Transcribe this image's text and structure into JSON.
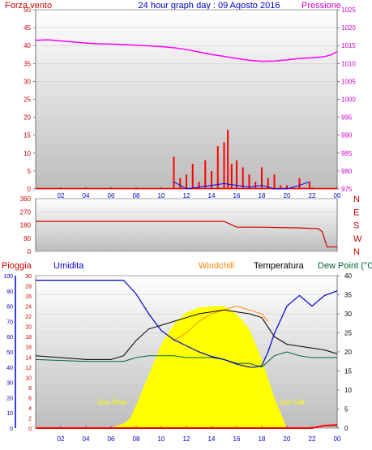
{
  "header": {
    "left_label": "Forza vento",
    "title": "24 hour graph day : 09 Agosto 2016",
    "right_label": "Pressione"
  },
  "mid_header": {
    "left_label": "Pioggia",
    "umidita_label": "Umidita",
    "windchill_label": "Windchill",
    "temperatura_label": "Temperatura",
    "dewpoint_label": "Dew Point (°C"
  },
  "annotations": {
    "sunrise": "Sun Rise",
    "sunset": "Sun Set"
  },
  "colors": {
    "background": "#ffffff",
    "plot_bg_top": "#ffffff",
    "plot_bg_bottom": "#c0c0c0",
    "wind": "#ff0000",
    "gust": "#0000ff",
    "pressure": "#ff00ff",
    "direction": "#cc0000",
    "humidity": "#0000cc",
    "windchill": "#ff8800",
    "temperature": "#000000",
    "dewpoint": "#006633",
    "solar": "#ffff00",
    "rain": "#ff0000"
  },
  "chart_data": [
    {
      "type": "line",
      "x_unit": "hour of day",
      "xlim": [
        0,
        24
      ],
      "x_tick_labels": [
        "02",
        "04",
        "06",
        "08",
        "10",
        "12",
        "14",
        "16",
        "18",
        "20",
        "22",
        "00"
      ],
      "ylim_left": [
        0,
        50
      ],
      "y_ticks_left": [
        0,
        5,
        10,
        15,
        20,
        25,
        30,
        35,
        40,
        45,
        50
      ],
      "ylim_right": [
        975,
        1025
      ],
      "y_ticks_right": [
        975,
        980,
        985,
        990,
        995,
        1000,
        1005,
        1010,
        1015,
        1020,
        1025
      ],
      "series": [
        {
          "name": "Pressione",
          "axis": "right",
          "x": [
            0,
            1,
            2,
            3,
            4,
            5,
            6,
            7,
            8,
            9,
            10,
            11,
            12,
            13,
            14,
            15,
            16,
            17,
            18,
            19,
            20,
            21,
            22,
            23,
            23.5,
            24
          ],
          "values": [
            1016.5,
            1016.6,
            1016.3,
            1016,
            1015.7,
            1015.5,
            1015.4,
            1015.3,
            1015.1,
            1014.9,
            1014.7,
            1014.4,
            1013.9,
            1013.2,
            1012.5,
            1012.0,
            1011.4,
            1010.9,
            1010.6,
            1010.7,
            1011.0,
            1011.4,
            1011.6,
            1011.9,
            1012.4,
            1013.3
          ]
        },
        {
          "name": "Forza vento",
          "axis": "left",
          "render": "bars",
          "x": [
            11,
            11.5,
            12,
            12.5,
            13,
            13.5,
            14,
            14.5,
            15,
            15.3,
            15.6,
            16,
            16.5,
            17,
            17.5,
            18,
            18.5,
            19,
            19.5,
            20,
            21,
            21.8
          ],
          "values": [
            9,
            3,
            4,
            7,
            2,
            8,
            5,
            12,
            13,
            16.5,
            7,
            8,
            6,
            4,
            2,
            6,
            3,
            4,
            1,
            1,
            3,
            2
          ]
        },
        {
          "name": "Raffica",
          "axis": "left",
          "x": [
            11,
            12,
            13,
            14,
            15,
            16,
            17,
            18,
            19,
            20,
            21,
            21.8
          ],
          "values": [
            2,
            0,
            0.5,
            1,
            1.5,
            1,
            0.5,
            1,
            0,
            0,
            1,
            2
          ]
        }
      ]
    },
    {
      "type": "line",
      "ylim": [
        0,
        360
      ],
      "y_ticks": [
        0,
        90,
        180,
        270,
        360
      ],
      "y_tick_labels_right": [
        "N",
        "W",
        "S",
        "E",
        "N"
      ],
      "series": [
        {
          "name": "Direzione vento",
          "x": [
            0,
            15,
            15.5,
            16,
            18,
            21,
            22.5,
            22.8,
            23.2,
            24
          ],
          "values": [
            205,
            205,
            185,
            165,
            165,
            160,
            155,
            135,
            30,
            30
          ]
        }
      ]
    },
    {
      "type": "line",
      "xlim": [
        0,
        24
      ],
      "x_tick_labels": [
        "02",
        "04",
        "06",
        "08",
        "10",
        "12",
        "14",
        "16",
        "18",
        "20",
        "22",
        "00"
      ],
      "ylim_humidity": [
        0,
        100
      ],
      "y_ticks_humidity": [
        0,
        10,
        20,
        30,
        40,
        50,
        60,
        70,
        80,
        90,
        100
      ],
      "ylim_rain": [
        0,
        30
      ],
      "y_ticks_rain": [
        0,
        2,
        4,
        6,
        8,
        10,
        12,
        14,
        16,
        18,
        20,
        22,
        24,
        26,
        28,
        30
      ],
      "ylim_temp": [
        0,
        40
      ],
      "y_ticks_temp": [
        0,
        5,
        10,
        15,
        20,
        25,
        30,
        35,
        40
      ],
      "series": [
        {
          "name": "Umidita",
          "axis": "humidity",
          "x": [
            0,
            6,
            7,
            8,
            9,
            10,
            11,
            12,
            13,
            14,
            15,
            16,
            17,
            17.5,
            18,
            18.5,
            19,
            20,
            21,
            22,
            23,
            24
          ],
          "values": [
            97,
            97,
            97,
            88,
            75,
            64,
            58,
            54,
            50,
            47,
            45,
            42,
            40,
            40,
            41,
            50,
            62,
            80,
            87,
            80,
            87,
            90
          ]
        },
        {
          "name": "Windchill",
          "axis": "temp",
          "x": [
            11,
            12,
            13,
            14,
            15,
            16,
            17,
            18,
            18.5
          ],
          "values": [
            23,
            25,
            28,
            30,
            31,
            32,
            31,
            30,
            28
          ]
        },
        {
          "name": "Temperatura",
          "axis": "temp",
          "x": [
            0,
            4,
            6,
            7,
            8,
            9,
            10,
            11,
            12,
            13,
            14,
            15,
            16,
            17,
            18,
            19,
            20,
            21,
            22,
            23,
            24
          ],
          "values": [
            19,
            18,
            18,
            19,
            23,
            26,
            27,
            28,
            29,
            30,
            30.5,
            31,
            30.5,
            30,
            29,
            24,
            22,
            21.5,
            21,
            20.5,
            19.5
          ]
        },
        {
          "name": "Dew Point",
          "axis": "temp",
          "x": [
            0,
            4,
            6,
            7,
            8,
            9,
            10,
            11,
            12,
            13,
            14,
            15,
            16,
            17,
            18,
            19,
            20,
            21,
            22,
            23,
            24
          ],
          "values": [
            18,
            17.5,
            17.5,
            17.5,
            18.5,
            19,
            19,
            19,
            18.5,
            18.5,
            18.5,
            18,
            17,
            17,
            16,
            19,
            20,
            19,
            18.5,
            18.5,
            18.5
          ]
        },
        {
          "name": "Solar",
          "axis": "humidity",
          "render": "area",
          "x": [
            6,
            7,
            7.5,
            8,
            9,
            10,
            11,
            12,
            13,
            14,
            15,
            16,
            17,
            17.5,
            18,
            19,
            20
          ],
          "values": [
            0,
            3,
            6,
            15,
            35,
            55,
            68,
            76,
            79,
            80,
            80,
            75,
            65,
            55,
            45,
            20,
            0
          ]
        },
        {
          "name": "Pioggia",
          "axis": "rain",
          "x": [
            0,
            22,
            23,
            24
          ],
          "values": [
            0,
            0,
            0.5,
            0.6
          ]
        }
      ]
    }
  ]
}
